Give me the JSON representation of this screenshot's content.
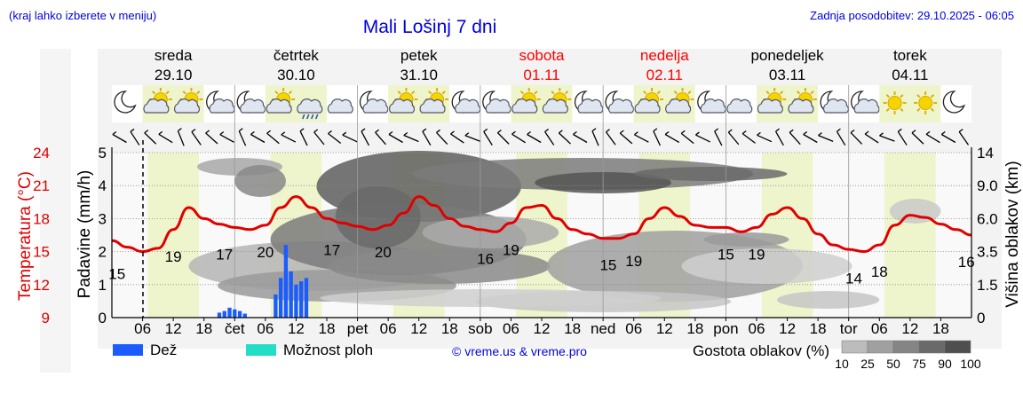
{
  "header": {
    "region_hint": "(kraj lahko izberete v meniju)",
    "title": "Mali Lošinj 7 dni",
    "updated": "Zadnja posodobitev: 29.10.2025 - 06:05"
  },
  "days": [
    {
      "name": "sreda",
      "date": "29.10",
      "weekend": false
    },
    {
      "name": "četrtek",
      "date": "30.10",
      "weekend": false
    },
    {
      "name": "petek",
      "date": "31.10",
      "weekend": false
    },
    {
      "name": "sobota",
      "date": "01.11",
      "weekend": true
    },
    {
      "name": "nedelja",
      "date": "02.11",
      "weekend": true
    },
    {
      "name": "ponedeljek",
      "date": "03.11",
      "weekend": false
    },
    {
      "name": "torek",
      "date": "04.11",
      "weekend": false
    }
  ],
  "colors": {
    "weekend": "#ff0000",
    "temperature": "#e00000",
    "rain": "#1a5cff",
    "showers": "#22ddc8",
    "daylight": "#eef5cc",
    "accent_link": "#0000dd"
  },
  "weather_icons": [
    "moon-icon",
    "partly-cloudy-icon",
    "partly-cloudy-icon",
    "moon-cloud-icon",
    "moon-cloud-icon",
    "partly-cloudy-icon",
    "rain-cloud-icon",
    "cloud-icon",
    "moon-cloud-icon",
    "partly-cloudy-icon",
    "partly-cloudy-icon",
    "moon-cloud-icon",
    "moon-cloud-icon",
    "partly-cloudy-icon",
    "partly-cloudy-icon",
    "moon-cloud-icon",
    "moon-cloud-icon",
    "partly-cloudy-icon",
    "partly-cloudy-icon",
    "moon-cloud-icon",
    "cloud-icon",
    "partly-cloudy-icon",
    "partly-cloudy-icon",
    "moon-cloud-icon",
    "moon-cloud-icon",
    "sun-icon",
    "sun-icon",
    "moon-icon"
  ],
  "chart_data": {
    "type": "line",
    "title": "Mali Lošinj 7 dni",
    "x_tick_labels": [
      "06",
      "12",
      "18",
      "čet",
      "06",
      "12",
      "18",
      "pet",
      "06",
      "12",
      "18",
      "sob",
      "06",
      "12",
      "18",
      "ned",
      "06",
      "12",
      "18",
      "pon",
      "06",
      "12",
      "18",
      "tor",
      "06",
      "12",
      "18"
    ],
    "left_axis_precip": {
      "label": "Padavine (mm/h)",
      "ticks": [
        "0",
        "1",
        "2",
        "3",
        "4",
        "5"
      ],
      "range": [
        0,
        5
      ]
    },
    "left_axis_temp": {
      "label": "Temperatura (°C)",
      "ticks": [
        "9",
        "12",
        "15",
        "18",
        "21",
        "24"
      ],
      "range": [
        9,
        24
      ]
    },
    "right_axis": {
      "label": "Višina oblakov (km)",
      "ticks": [
        "0",
        "1.5",
        "3.5",
        "6.0",
        "9.0",
        "14"
      ]
    },
    "temperature_hours": [
      0,
      3,
      6,
      9,
      12,
      15,
      18,
      21,
      24,
      27,
      30,
      33,
      36,
      39,
      42,
      45,
      48,
      51,
      54,
      57,
      60,
      63,
      66,
      69,
      72,
      75,
      78,
      81,
      84,
      87,
      90,
      93,
      96,
      99,
      102,
      105,
      108,
      111,
      114,
      117,
      120,
      123,
      126,
      129,
      132,
      135,
      138,
      141,
      144,
      147,
      150,
      153,
      156,
      159,
      162,
      165,
      168
    ],
    "temperature_c": [
      16,
      15.4,
      15,
      15.3,
      17,
      19,
      18,
      17.5,
      17.2,
      17,
      17.4,
      19,
      20,
      19,
      18,
      17.6,
      17.3,
      17,
      17.4,
      18.5,
      20,
      19.2,
      18,
      17.3,
      17,
      16.8,
      17.6,
      19,
      19.2,
      18,
      17,
      16.6,
      16.2,
      16.2,
      16.6,
      18,
      19,
      18.2,
      17.4,
      17.2,
      17.2,
      16.8,
      17.2,
      18.4,
      19,
      18,
      16.6,
      15.6,
      15.2,
      15,
      15.6,
      17.4,
      18.3,
      18.1,
      17.5,
      17,
      16.5
    ],
    "temperature_labels": [
      {
        "hour": 1,
        "text": "15"
      },
      {
        "hour": 12,
        "text": "19"
      },
      {
        "hour": 22,
        "text": "17"
      },
      {
        "hour": 30,
        "text": "20"
      },
      {
        "hour": 43,
        "text": "17"
      },
      {
        "hour": 53,
        "text": "20"
      },
      {
        "hour": 73,
        "text": "16"
      },
      {
        "hour": 78,
        "text": "19"
      },
      {
        "hour": 97,
        "text": "15"
      },
      {
        "hour": 102,
        "text": "19"
      },
      {
        "hour": 120,
        "text": "15"
      },
      {
        "hour": 126,
        "text": "19"
      },
      {
        "hour": 145,
        "text": "14"
      },
      {
        "hour": 150,
        "text": "18"
      },
      {
        "hour": 167,
        "text": "16"
      }
    ],
    "rain_bars": [
      {
        "hour": 21,
        "mmh": 0.15
      },
      {
        "hour": 22,
        "mmh": 0.2
      },
      {
        "hour": 23,
        "mmh": 0.3
      },
      {
        "hour": 24,
        "mmh": 0.25
      },
      {
        "hour": 25,
        "mmh": 0.2
      },
      {
        "hour": 26,
        "mmh": 0.12
      },
      {
        "hour": 32,
        "mmh": 0.7
      },
      {
        "hour": 33,
        "mmh": 1.2
      },
      {
        "hour": 34,
        "mmh": 2.2
      },
      {
        "hour": 35,
        "mmh": 1.4
      },
      {
        "hour": 36,
        "mmh": 1.0
      },
      {
        "hour": 37,
        "mmh": 1.1
      },
      {
        "hour": 38,
        "mmh": 1.2
      }
    ]
  },
  "legend": {
    "rain": "Dež",
    "showers": "Možnost ploh",
    "credit": "© vreme.us & vreme.pro",
    "density_title": "Gostota oblakov (%)",
    "density_levels": [
      "10",
      "25",
      "50",
      "75",
      "90",
      "100"
    ]
  }
}
